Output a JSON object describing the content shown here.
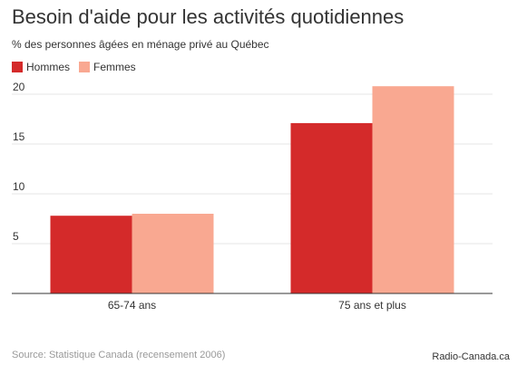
{
  "header": {
    "title": "Besoin d'aide pour les activités quotidiennes",
    "subtitle": "% des personnes âgées en ménage privé au Québec"
  },
  "footer": {
    "source": "Source: Statistique Canada (recensement 2006)",
    "credit": "Radio-Canada.ca"
  },
  "chart_data": {
    "type": "bar",
    "title": "Besoin d'aide pour les activités quotidiennes",
    "subtitle": "% des personnes âgées en ménage privé au Québec",
    "categories": [
      "65-74 ans",
      "75 ans et plus"
    ],
    "series": [
      {
        "name": "Hommes",
        "values": [
          7.8,
          17.1
        ],
        "color": "#d42a2a"
      },
      {
        "name": "Femmes",
        "values": [
          8.0,
          20.8
        ],
        "color": "#f9a891"
      }
    ],
    "yticks": [
      "5",
      "10",
      "15",
      "20"
    ],
    "ylim": [
      0,
      21.5
    ],
    "grid": true,
    "legend_position": "top-left"
  }
}
